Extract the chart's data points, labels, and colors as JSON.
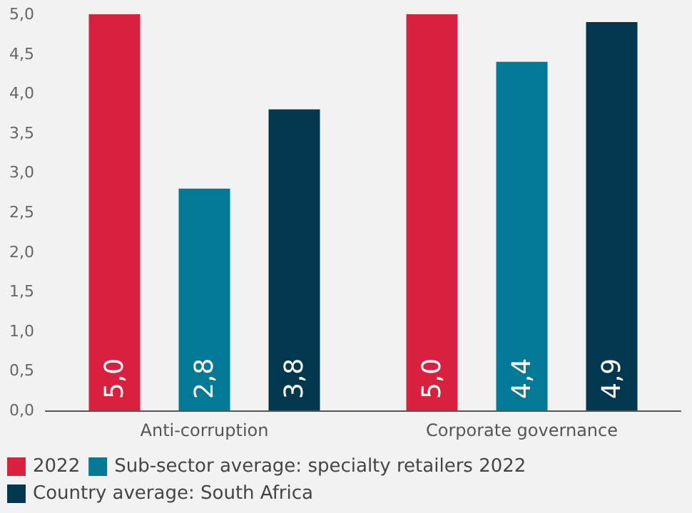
{
  "chart_data": {
    "type": "bar",
    "categories": [
      "Anti-corruption",
      "Corporate governance"
    ],
    "series": [
      {
        "name": "2022",
        "color": "#d9203f",
        "values": [
          5.0,
          5.0
        ],
        "value_labels": [
          "5,0",
          "5,0"
        ]
      },
      {
        "name": "Sub-sector average: specialty retailers 2022",
        "color": "#027996",
        "values": [
          2.8,
          4.4
        ],
        "value_labels": [
          "2,8",
          "4,4"
        ]
      },
      {
        "name": "Country average: South Africa",
        "color": "#02384f",
        "values": [
          3.8,
          4.9
        ],
        "value_labels": [
          "3,8",
          "4,9"
        ]
      }
    ],
    "ylim": [
      0,
      5
    ],
    "yticks": [
      {
        "value": 0,
        "label": "0,0"
      },
      {
        "value": 0.5,
        "label": "0,5"
      },
      {
        "value": 1,
        "label": "1,0"
      },
      {
        "value": 1.5,
        "label": "1,5"
      },
      {
        "value": 2,
        "label": "2,0"
      },
      {
        "value": 2.5,
        "label": "2,5"
      },
      {
        "value": 3,
        "label": "3,0"
      },
      {
        "value": 3.5,
        "label": "3,5"
      },
      {
        "value": 4,
        "label": "4,0"
      },
      {
        "value": 4.5,
        "label": "4,5"
      },
      {
        "value": 5,
        "label": "5,0"
      }
    ],
    "grid": false,
    "legend": "bottom left"
  }
}
